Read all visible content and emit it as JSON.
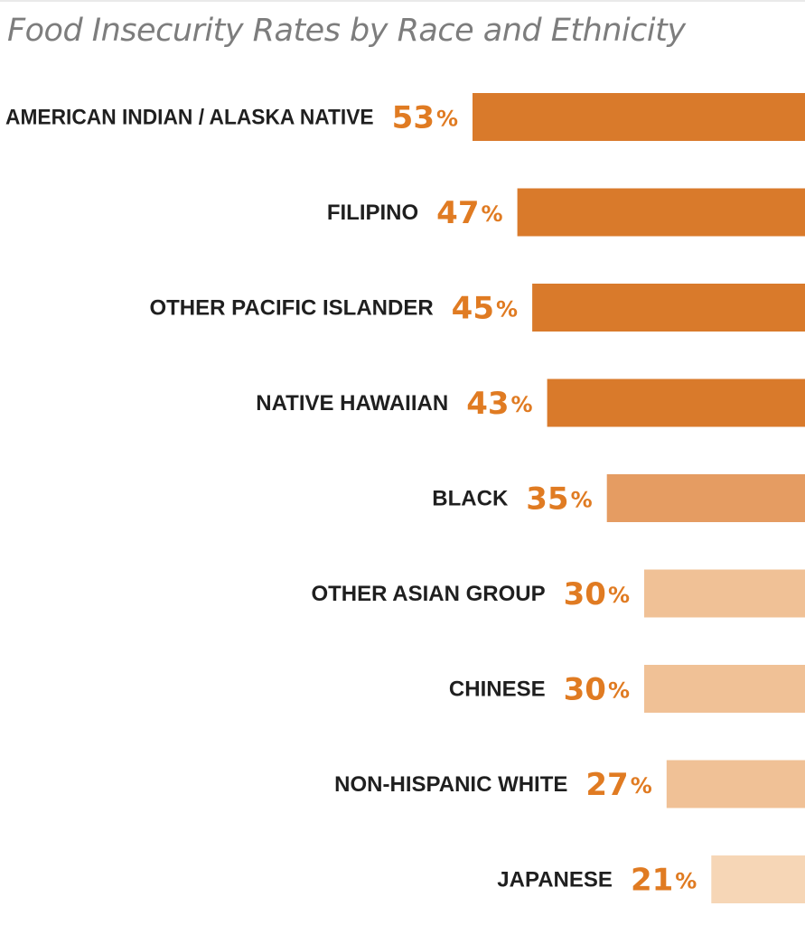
{
  "chart_data": {
    "type": "bar",
    "orientation": "horizontal",
    "title": "Food Insecurity Rates by Race and Ethnicity",
    "unit": "%",
    "categories": [
      "AMERICAN INDIAN / ALASKA NATIVE",
      "FILIPINO",
      "OTHER PACIFIC ISLANDER",
      "NATIVE HAWAIIAN",
      "BLACK",
      "OTHER ASIAN GROUP",
      "CHINESE",
      "NON-HISPANIC WHITE",
      "JAPANESE"
    ],
    "values": [
      53,
      47,
      45,
      43,
      35,
      30,
      30,
      27,
      21
    ],
    "bar_colors": [
      "#d97a2b",
      "#d97a2b",
      "#d97a2b",
      "#d97a2b",
      "#e59c62",
      "#f0c196",
      "#f0c196",
      "#f0c196",
      "#f6d6b6"
    ],
    "value_label_color": "#e07b22",
    "grid": false,
    "legend": "none"
  }
}
